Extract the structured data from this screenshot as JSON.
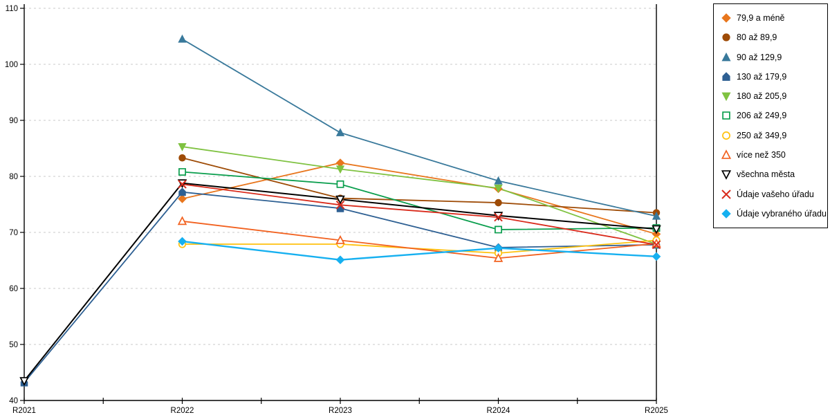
{
  "chart_data": {
    "type": "line",
    "title": "",
    "xlabel": "",
    "ylabel": "",
    "categories": [
      "R2021",
      "R2022",
      "R2023",
      "R2024",
      "R2025"
    ],
    "ylim": [
      40,
      110
    ],
    "ytick_step": 10,
    "yticks": [
      40,
      50,
      60,
      70,
      80,
      90,
      100,
      110
    ],
    "grid": "horizontal-dashed",
    "legend_position": "right",
    "series": [
      {
        "name": "79,9 a méně",
        "color": "#E8761D",
        "marker": "diamond",
        "fill": "solid",
        "line_width": 1.8,
        "values": [
          null,
          76.0,
          82.4,
          77.8,
          69.7
        ]
      },
      {
        "name": "80 až 89,9",
        "color": "#9E4B06",
        "marker": "circle",
        "fill": "solid",
        "line_width": 1.8,
        "values": [
          null,
          83.3,
          76.1,
          75.3,
          73.5
        ]
      },
      {
        "name": "90 až 129,9",
        "color": "#39799B",
        "marker": "triangle-up",
        "fill": "solid",
        "line_width": 1.8,
        "values": [
          null,
          104.5,
          87.8,
          79.2,
          72.9
        ]
      },
      {
        "name": "130 až 179,9",
        "color": "#2E6093",
        "marker": "pentagon",
        "fill": "solid",
        "line_width": 1.8,
        "values": [
          43.2,
          77.2,
          74.3,
          67.3,
          67.8
        ]
      },
      {
        "name": "180 až 205,9",
        "color": "#7FC241",
        "marker": "triangle-down",
        "fill": "solid",
        "line_width": 1.8,
        "values": [
          null,
          85.3,
          81.3,
          77.9,
          67.9
        ]
      },
      {
        "name": "206 až 249,9",
        "color": "#0A9E4D",
        "marker": "square",
        "fill": "open",
        "line_width": 1.8,
        "values": [
          null,
          80.8,
          78.6,
          70.5,
          70.8
        ]
      },
      {
        "name": "250 až 349,9",
        "color": "#FFC10E",
        "marker": "circle",
        "fill": "open",
        "line_width": 1.8,
        "values": [
          null,
          67.9,
          67.9,
          66.3,
          68.6
        ]
      },
      {
        "name": "více než 350",
        "color": "#F2611F",
        "marker": "triangle-up",
        "fill": "open",
        "line_width": 1.8,
        "values": [
          null,
          72.0,
          68.6,
          65.4,
          68.0
        ]
      },
      {
        "name": "všechna města",
        "color": "#000000",
        "marker": "triangle-down",
        "fill": "open",
        "line_width": 2.0,
        "values": [
          43.5,
          78.8,
          75.9,
          73.0,
          70.6
        ]
      },
      {
        "name": "Údaje vašeho úřadu",
        "color": "#D92B1C",
        "marker": "x",
        "fill": "solid",
        "line_width": 1.8,
        "values": [
          null,
          78.6,
          74.9,
          72.7,
          67.8
        ]
      },
      {
        "name": "Údaje vybraného úřadu",
        "color": "#16B0F0",
        "marker": "diamond",
        "fill": "solid",
        "line_width": 2.4,
        "values": [
          null,
          68.4,
          65.1,
          67.2,
          65.7
        ]
      }
    ]
  },
  "colors": {
    "axis": "#000000",
    "gridline": "#c8c8c8",
    "background": "#ffffff"
  }
}
